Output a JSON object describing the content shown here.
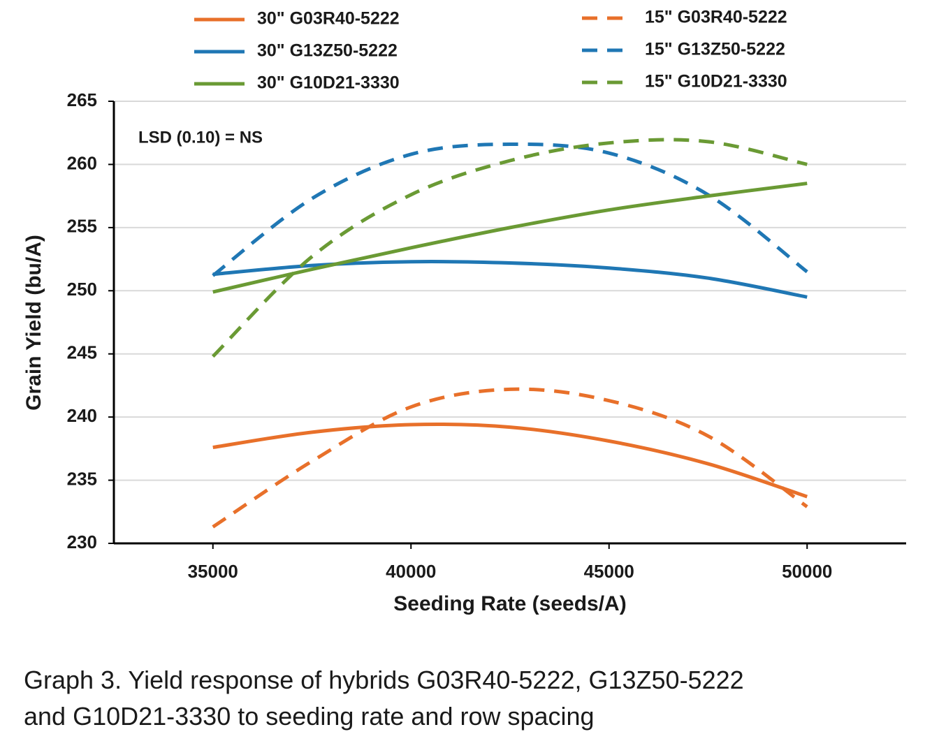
{
  "chart_data": {
    "type": "line",
    "x_label": "Seeding Rate (seeds/A)",
    "y_label": "Grain Yield (bu/A)",
    "annotation": "LSD (0.10) = NS",
    "caption": [
      "Graph 3. Yield response of hybrids G03R40-5222, G13Z50-5222",
      "and G10D21-3330 to seeding rate and row spacing"
    ],
    "x": [
      35000,
      37500,
      40000,
      42500,
      45000,
      47500,
      50000
    ],
    "xlim": [
      32500,
      52500
    ],
    "xticks": [
      35000,
      40000,
      45000,
      50000
    ],
    "ylim": [
      230,
      265
    ],
    "yticks": [
      230,
      235,
      240,
      245,
      250,
      255,
      260,
      265
    ],
    "grid": true,
    "series": [
      {
        "name": "30\" G03R40-5222",
        "color": "#e8702a",
        "dashed": false,
        "values": [
          237.6,
          238.8,
          239.4,
          239.2,
          238.1,
          236.3,
          233.7
        ]
      },
      {
        "name": "15\" G03R40-5222",
        "color": "#e8702a",
        "dashed": true,
        "values": [
          231.3,
          236.5,
          240.8,
          242.2,
          241.3,
          238.5,
          232.9
        ]
      },
      {
        "name": "30\" G13Z50-5222",
        "color": "#1f77b4",
        "dashed": false,
        "values": [
          251.3,
          252.0,
          252.3,
          252.2,
          251.8,
          251.0,
          249.5
        ]
      },
      {
        "name": "15\" G13Z50-5222",
        "color": "#1f77b4",
        "dashed": true,
        "values": [
          251.2,
          257.3,
          260.8,
          261.6,
          260.9,
          257.6,
          251.5
        ]
      },
      {
        "name": "30\" G10D21-3330",
        "color": "#6a9a34",
        "dashed": false,
        "values": [
          249.9,
          251.7,
          253.4,
          255.0,
          256.4,
          257.5,
          258.5
        ]
      },
      {
        "name": "15\" G10D21-3330",
        "color": "#6a9a34",
        "dashed": true,
        "values": [
          244.8,
          252.7,
          257.6,
          260.3,
          261.7,
          261.8,
          260.0
        ]
      }
    ]
  }
}
